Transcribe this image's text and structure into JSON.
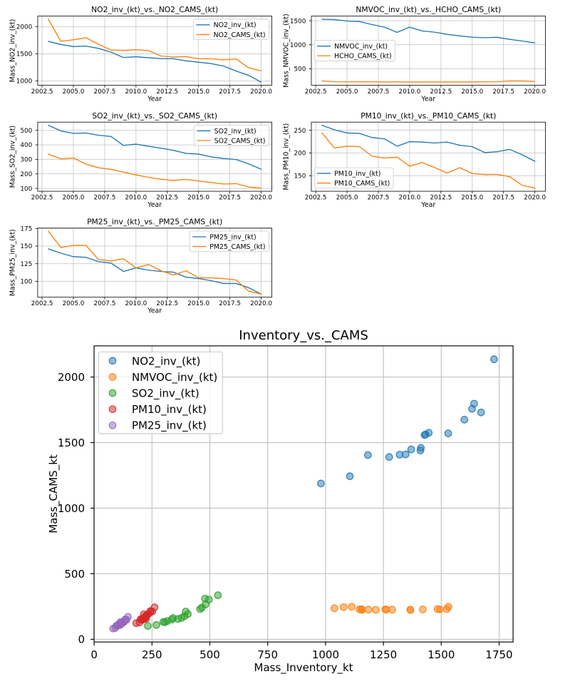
{
  "figure_title": "Inventory_vs._CAMS",
  "years": [
    2003,
    2004,
    2005,
    2006,
    2007,
    2008,
    2009,
    2010,
    2011,
    2012,
    2013,
    2014,
    2015,
    2016,
    2017,
    2018,
    2019,
    2020
  ],
  "palette": {
    "blue": "#1f77b4",
    "orange": "#ff7f0e",
    "green": "#2ca02c",
    "red": "#d62728",
    "purple": "#9467bd",
    "grid": "#c0c0c0",
    "spine": "#000000",
    "legend_edge": "#cccccc"
  },
  "chart_data": [
    {
      "id": "no2",
      "type": "line",
      "title": "NO2_inv_(kt)_vs._NO2_CAMS_(kt)",
      "xlabel": "Year",
      "ylabel": "Mass_NO2_inv_(kt)",
      "x": [
        2003,
        2004,
        2005,
        2006,
        2007,
        2008,
        2009,
        2010,
        2011,
        2012,
        2013,
        2014,
        2015,
        2016,
        2017,
        2018,
        2019,
        2020
      ],
      "series": [
        {
          "name": "NO2_inv_(kt)",
          "color": "#1f77b4",
          "values": [
            1728,
            1672,
            1633,
            1642,
            1600,
            1530,
            1432,
            1446,
            1428,
            1412,
            1410,
            1370,
            1346,
            1320,
            1275,
            1183,
            1105,
            980
          ]
        },
        {
          "name": "NO2_CAMS_(kt)",
          "color": "#ff7f0e",
          "values": [
            2135,
            1730,
            1757,
            1797,
            1675,
            1570,
            1562,
            1575,
            1558,
            1460,
            1440,
            1448,
            1410,
            1408,
            1390,
            1405,
            1243,
            1188
          ]
        }
      ],
      "xticks": [
        "2002.5",
        "2005.0",
        "2007.5",
        "2010.0",
        "2012.5",
        "2015.0",
        "2017.5",
        "2020.0"
      ],
      "yticks": [
        1000,
        1500,
        2000
      ],
      "legend_loc": "upper right",
      "grid": true
    },
    {
      "id": "nmvoc",
      "type": "line",
      "title": "NMVOC_inv_(kt)_vs._HCHO_CAMS_(kt)",
      "xlabel": "Year",
      "ylabel": "Mass_NMVOC_inv_(kt)",
      "x": [
        2003,
        2004,
        2005,
        2006,
        2007,
        2008,
        2009,
        2010,
        2011,
        2012,
        2013,
        2014,
        2015,
        2016,
        2017,
        2018,
        2019,
        2020
      ],
      "series": [
        {
          "name": "NMVOC_inv_(kt)",
          "color": "#1f77b4",
          "values": [
            1531,
            1524,
            1494,
            1484,
            1420,
            1366,
            1258,
            1367,
            1288,
            1262,
            1217,
            1185,
            1158,
            1147,
            1155,
            1113,
            1078,
            1038
          ]
        },
        {
          "name": "HCHO_CAMS_(kt)",
          "color": "#ff7f0e",
          "values": [
            248,
            230,
            228,
            230,
            228,
            226,
            228,
            223,
            226,
            226,
            225,
            226,
            225,
            228,
            230,
            248,
            246,
            236
          ]
        }
      ],
      "xticks": [
        "2002.5",
        "2005.0",
        "2007.5",
        "2010.0",
        "2012.5",
        "2015.0",
        "2017.5",
        "2020.0"
      ],
      "yticks": [
        500,
        1000,
        1500
      ],
      "legend_loc": "center left",
      "grid": true
    },
    {
      "id": "so2",
      "type": "line",
      "title": "SO2_inv_(kt)_vs._SO2_CAMS_(kt)",
      "xlabel": "Year",
      "ylabel": "Mass_SO2_inv_(kt)",
      "x": [
        2003,
        2004,
        2005,
        2006,
        2007,
        2008,
        2009,
        2010,
        2011,
        2012,
        2013,
        2014,
        2015,
        2016,
        2017,
        2018,
        2019,
        2020
      ],
      "series": [
        {
          "name": "SO2_inv_(kt)",
          "color": "#1f77b4",
          "values": [
            535,
            496,
            479,
            482,
            466,
            458,
            396,
            405,
            390,
            377,
            362,
            341,
            336,
            317,
            306,
            299,
            269,
            232
          ]
        },
        {
          "name": "SO2_CAMS_(kt)",
          "color": "#ff7f0e",
          "values": [
            336,
            303,
            310,
            267,
            242,
            231,
            212,
            193,
            176,
            163,
            155,
            162,
            151,
            140,
            130,
            133,
            109,
            102
          ]
        }
      ],
      "xticks": [
        "2002.5",
        "2005.0",
        "2007.5",
        "2010.0",
        "2012.5",
        "2015.0",
        "2017.5",
        "2020.0"
      ],
      "yticks": [
        100,
        200,
        300,
        400,
        500
      ],
      "legend_loc": "upper right",
      "grid": true
    },
    {
      "id": "pm10",
      "type": "line",
      "title": "PM10_inv_(kt)_vs._PM10_CAMS_(kt)",
      "xlabel": "Year",
      "ylabel": "Mass_PM10_inv_(kt)",
      "x": [
        2003,
        2004,
        2005,
        2006,
        2007,
        2008,
        2009,
        2010,
        2011,
        2012,
        2013,
        2014,
        2015,
        2016,
        2017,
        2018,
        2019,
        2020
      ],
      "series": [
        {
          "name": "PM10_inv_(kt)",
          "color": "#1f77b4",
          "values": [
            261,
            251,
            244,
            243,
            234,
            231,
            215,
            225,
            224,
            222,
            224,
            217,
            214,
            201,
            203,
            208,
            196,
            182
          ]
        },
        {
          "name": "PM10_CAMS_(kt)",
          "color": "#ff7f0e",
          "values": [
            244,
            211,
            215,
            214,
            193,
            189,
            191,
            171,
            179,
            168,
            156,
            168,
            155,
            153,
            153,
            148,
            129,
            123
          ]
        }
      ],
      "xticks": [
        "2002.5",
        "2005.0",
        "2007.5",
        "2010.0",
        "2012.5",
        "2015.0",
        "2017.5",
        "2020.0"
      ],
      "yticks": [
        150,
        200,
        250
      ],
      "legend_loc": "lower left",
      "grid": true
    },
    {
      "id": "pm25",
      "type": "line",
      "title": "PM25_inv_(kt)_vs._PM25_CAMS_(kt)",
      "xlabel": "Year",
      "ylabel": "Mass_PM25_inv_(kt)",
      "x": [
        2003,
        2004,
        2005,
        2006,
        2007,
        2008,
        2009,
        2010,
        2011,
        2012,
        2013,
        2014,
        2015,
        2016,
        2017,
        2018,
        2019,
        2020
      ],
      "series": [
        {
          "name": "PM25_inv_(kt)",
          "color": "#1f77b4",
          "values": [
            146,
            140,
            135,
            134,
            128,
            126,
            114,
            119,
            116,
            114,
            113,
            106,
            104,
            101,
            97,
            97,
            91,
            82
          ]
        },
        {
          "name": "PM25_CAMS_(kt)",
          "color": "#ff7f0e",
          "values": [
            171,
            148,
            151,
            151,
            131,
            129,
            132,
            119,
            124,
            115,
            109,
            115,
            105,
            105,
            104,
            102,
            86,
            82
          ]
        }
      ],
      "xticks": [
        "2002.5",
        "2005.0",
        "2007.5",
        "2010.0",
        "2012.5",
        "2015.0",
        "2017.5",
        "2020.0"
      ],
      "yticks": [
        100,
        125,
        150,
        175
      ],
      "legend_loc": "upper right",
      "grid": true
    },
    {
      "id": "inventory_vs_cams",
      "type": "scatter",
      "title": "Inventory_vs._CAMS",
      "xlabel": "Mass_Inventory_kt",
      "ylabel": "Mass_CAMS_kt",
      "series": [
        {
          "name": "NO2_inv_(kt)",
          "color": "#1f77b4",
          "x": [
            1728,
            1672,
            1633,
            1642,
            1600,
            1530,
            1432,
            1446,
            1428,
            1412,
            1410,
            1370,
            1346,
            1320,
            1275,
            1183,
            1105,
            980
          ],
          "y": [
            2135,
            1730,
            1757,
            1797,
            1675,
            1570,
            1562,
            1575,
            1558,
            1460,
            1440,
            1448,
            1410,
            1408,
            1390,
            1405,
            1243,
            1188
          ]
        },
        {
          "name": "NMVOC_inv_(kt)",
          "color": "#ff7f0e",
          "x": [
            1531,
            1524,
            1494,
            1484,
            1420,
            1366,
            1258,
            1367,
            1288,
            1262,
            1217,
            1185,
            1158,
            1147,
            1155,
            1113,
            1078,
            1038
          ],
          "y": [
            248,
            230,
            228,
            230,
            228,
            226,
            228,
            223,
            226,
            226,
            225,
            226,
            225,
            228,
            230,
            248,
            246,
            236
          ]
        },
        {
          "name": "SO2_inv_(kt)",
          "color": "#2ca02c",
          "x": [
            535,
            496,
            479,
            482,
            466,
            458,
            396,
            405,
            390,
            377,
            362,
            341,
            336,
            317,
            306,
            299,
            269,
            232
          ],
          "y": [
            336,
            303,
            310,
            267,
            242,
            231,
            212,
            193,
            176,
            163,
            155,
            162,
            151,
            140,
            130,
            133,
            109,
            102
          ]
        },
        {
          "name": "PM10_inv_(kt)",
          "color": "#d62728",
          "x": [
            261,
            251,
            244,
            243,
            234,
            231,
            215,
            225,
            224,
            222,
            224,
            217,
            214,
            201,
            203,
            208,
            196,
            182
          ],
          "y": [
            244,
            211,
            215,
            214,
            193,
            189,
            191,
            171,
            179,
            168,
            156,
            168,
            155,
            153,
            153,
            148,
            129,
            123
          ]
        },
        {
          "name": "PM25_inv_(kt)",
          "color": "#9467bd",
          "x": [
            146,
            140,
            135,
            134,
            128,
            126,
            114,
            119,
            116,
            114,
            113,
            106,
            104,
            101,
            97,
            97,
            91,
            82
          ],
          "y": [
            171,
            148,
            151,
            151,
            131,
            129,
            132,
            119,
            124,
            115,
            109,
            115,
            105,
            105,
            104,
            102,
            86,
            82
          ]
        }
      ],
      "xticks": [
        0,
        250,
        500,
        750,
        1000,
        1250,
        1500,
        1750
      ],
      "yticks": [
        0,
        500,
        1000,
        1500,
        2000
      ],
      "legend_loc": "upper left",
      "grid": true
    }
  ]
}
